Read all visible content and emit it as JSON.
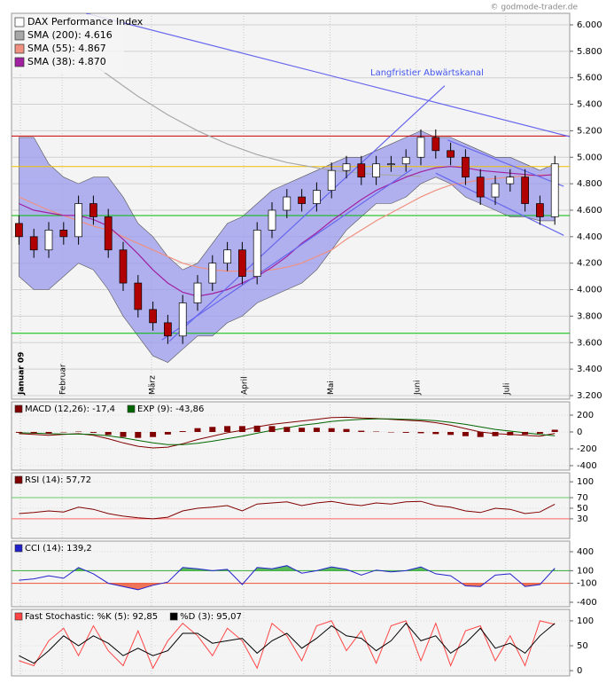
{
  "watermark": "© godmode-trader.de",
  "chart_data": [
    {
      "type": "candlestick",
      "annotation": "Langfristier Abwärtskanal",
      "xlim": [
        -0.5,
        37
      ],
      "ylim": [
        3173,
        6087
      ],
      "xticks": [
        {
          "value": 0.1,
          "label": "Januar 09"
        },
        {
          "value": 2.9,
          "label": "Februar"
        },
        {
          "value": 8.9,
          "label": "März"
        },
        {
          "value": 15.1,
          "label": "April"
        },
        {
          "value": 20.9,
          "label": "Mai"
        },
        {
          "value": 26.7,
          "label": "Juni"
        },
        {
          "value": 32.7,
          "label": "Juli"
        }
      ],
      "yticks": [
        {
          "value": 3200,
          "label": "3.200"
        },
        {
          "value": 3400,
          "label": "3.400"
        },
        {
          "value": 3600,
          "label": "3.600"
        },
        {
          "value": 3800,
          "label": "3.800"
        },
        {
          "value": 4000,
          "label": "4.000"
        },
        {
          "value": 4200,
          "label": "4.200"
        },
        {
          "value": 4400,
          "label": "4.400"
        },
        {
          "value": 4600,
          "label": "4.600"
        },
        {
          "value": 4800,
          "label": "4.800"
        },
        {
          "value": 5000,
          "label": "5.000"
        },
        {
          "value": 5200,
          "label": "5.200"
        },
        {
          "value": 5400,
          "label": "5.400"
        },
        {
          "value": 5600,
          "label": "5.600"
        },
        {
          "value": 5800,
          "label": "5.800"
        },
        {
          "value": 6000,
          "label": "6.000"
        }
      ],
      "grid": true,
      "up_color": "#ffffff",
      "down_color": "#b00000",
      "series": [
        {
          "name": "DAX Performance Index",
          "color": "#ffffff",
          "open": [
            4500,
            4400,
            4300,
            4450,
            4400,
            4650,
            4550,
            4300,
            4050,
            3850,
            3750,
            3650,
            3900,
            4050,
            4200,
            4300,
            4100,
            4450,
            4600,
            4700,
            4650,
            4750,
            4900,
            4950,
            4850,
            4950,
            4950,
            5000,
            5150,
            5050,
            5000,
            4850,
            4700,
            4800,
            4850,
            4650,
            4550
          ],
          "high": [
            4560,
            4460,
            4510,
            4510,
            4710,
            4710,
            4610,
            4360,
            4110,
            3910,
            3810,
            3960,
            4110,
            4260,
            4360,
            4360,
            4510,
            4660,
            4760,
            4760,
            4810,
            4960,
            5010,
            5010,
            5010,
            5010,
            5060,
            5210,
            5210,
            5110,
            5060,
            4910,
            4860,
            4910,
            4910,
            4710,
            5010
          ],
          "low": [
            4340,
            4240,
            4240,
            4340,
            4340,
            4490,
            4240,
            3990,
            3790,
            3690,
            3590,
            3590,
            3840,
            3990,
            4140,
            4040,
            4040,
            4390,
            4540,
            4590,
            4590,
            4690,
            4840,
            4790,
            4790,
            4890,
            4890,
            4940,
            4990,
            4940,
            4790,
            4640,
            4640,
            4740,
            4590,
            4490,
            4490
          ],
          "close": [
            4400,
            4300,
            4450,
            4400,
            4650,
            4550,
            4300,
            4050,
            3850,
            3750,
            3650,
            3900,
            4050,
            4200,
            4300,
            4100,
            4450,
            4600,
            4700,
            4650,
            4750,
            4900,
            4950,
            4850,
            4950,
            4950,
            5000,
            5150,
            5050,
            5000,
            4850,
            4700,
            4800,
            4850,
            4650,
            4550,
            4950
          ]
        },
        {
          "name": "SMA (200): 4.616",
          "color": "#a8a8a8",
          "values": [
            null,
            null,
            null,
            null,
            null,
            5700,
            5620,
            5540,
            5460,
            5390,
            5320,
            5260,
            5200,
            5150,
            5100,
            5060,
            5020,
            4990,
            4960,
            4940,
            4920,
            4900,
            4890,
            4880,
            4870,
            4865,
            4860,
            4855,
            null,
            null,
            null,
            null,
            null,
            null,
            null,
            null,
            null
          ]
        },
        {
          "name": "SMA (55): 4.867",
          "color": "#f09080",
          "values": [
            4700,
            4650,
            4600,
            4560,
            4520,
            4480,
            4450,
            4400,
            4350,
            4300,
            4250,
            4200,
            4170,
            4150,
            4140,
            4140,
            4140,
            4150,
            4170,
            4200,
            4250,
            4300,
            4380,
            4450,
            4520,
            4580,
            4640,
            4700,
            4750,
            4790,
            4810,
            4830,
            4840,
            4850,
            4860,
            4865,
            4867
          ]
        },
        {
          "name": "SMA (38): 4.870",
          "color": "#a020a0",
          "values": [
            4650,
            4600,
            4580,
            4560,
            4560,
            4530,
            4480,
            4380,
            4270,
            4150,
            4050,
            3980,
            3950,
            3970,
            4000,
            4050,
            4100,
            4170,
            4250,
            4350,
            4430,
            4520,
            4600,
            4680,
            4750,
            4800,
            4850,
            4890,
            4920,
            4930,
            4920,
            4900,
            4890,
            4880,
            4870,
            4860,
            4870
          ]
        }
      ],
      "bands": {
        "color": "#9999ee",
        "upper": [
          5150,
          5150,
          4950,
          4850,
          4800,
          4850,
          4850,
          4700,
          4500,
          4400,
          4250,
          4150,
          4200,
          4350,
          4500,
          4550,
          4650,
          4750,
          4800,
          4850,
          4900,
          4950,
          5000,
          5000,
          5050,
          5100,
          5150,
          5200,
          5150,
          5150,
          5100,
          5050,
          5000,
          5000,
          4950,
          4900,
          4950
        ],
        "lower": [
          4100,
          4000,
          4000,
          4100,
          4200,
          4150,
          4000,
          3800,
          3650,
          3500,
          3450,
          3550,
          3650,
          3650,
          3750,
          3800,
          3900,
          3950,
          4000,
          4050,
          4150,
          4300,
          4450,
          4550,
          4650,
          4650,
          4700,
          4800,
          4850,
          4800,
          4700,
          4650,
          4600,
          4550,
          4550,
          4520,
          4520
        ]
      },
      "hlines": [
        {
          "value": 5160,
          "color": "#cc0000"
        },
        {
          "value": 4930,
          "color": "#f0c000"
        },
        {
          "value": 4560,
          "color": "#00bb00"
        },
        {
          "value": 3670,
          "color": "#00bb00"
        }
      ],
      "trendlines": [
        {
          "x": [
            4.5,
            37.2
          ],
          "y": [
            6087,
            5150
          ],
          "color": "#6666ee"
        },
        {
          "x": [
            10.1,
            28.6
          ],
          "y": [
            3610,
            5540
          ],
          "color": "#6666ee"
        },
        {
          "x": [
            9.6,
            26.4
          ],
          "y": [
            3620,
            4910
          ],
          "color": "#6666ee"
        },
        {
          "x": [
            28.8,
            36.6
          ],
          "y": [
            5130,
            4780
          ],
          "color": "#6666ee"
        },
        {
          "x": [
            28,
            36.6
          ],
          "y": [
            4880,
            4410
          ],
          "color": "#6666ee"
        }
      ]
    },
    {
      "type": "line",
      "xlim": [
        -0.5,
        37
      ],
      "ylim": [
        -453,
        358
      ],
      "yticks": [
        -400,
        -200,
        0,
        200
      ],
      "series": [
        {
          "name": "MACD (12,26): -17,4",
          "color": "#800000",
          "values": [
            -20,
            -30,
            -40,
            -30,
            -20,
            -40,
            -80,
            -130,
            -170,
            -190,
            -180,
            -140,
            -90,
            -50,
            -10,
            20,
            60,
            90,
            110,
            130,
            150,
            170,
            175,
            165,
            160,
            150,
            140,
            130,
            110,
            80,
            40,
            0,
            -20,
            -30,
            -40,
            -50,
            -17.4
          ]
        },
        {
          "name": "EXP (9): -43,86",
          "color": "#006600",
          "values": [
            -10,
            -15,
            -20,
            -25,
            -25,
            -30,
            -45,
            -70,
            -100,
            -130,
            -150,
            -150,
            -135,
            -110,
            -80,
            -50,
            -15,
            20,
            50,
            80,
            100,
            125,
            140,
            150,
            155,
            155,
            150,
            145,
            135,
            115,
            90,
            60,
            30,
            10,
            -10,
            -30,
            -43.86
          ]
        },
        {
          "color": "#800000",
          "style": "bar",
          "values": [
            -10,
            -15,
            -20,
            -5,
            5,
            -10,
            -35,
            -60,
            -70,
            -60,
            -30,
            10,
            45,
            60,
            70,
            70,
            75,
            70,
            60,
            50,
            50,
            45,
            35,
            15,
            5,
            -5,
            -10,
            -15,
            -25,
            -35,
            -50,
            -60,
            -50,
            -40,
            -30,
            -20,
            26.46
          ]
        }
      ]
    },
    {
      "type": "line",
      "xlim": [
        -0.5,
        37
      ],
      "ylim": [
        -7,
        117
      ],
      "yticks": [
        30,
        50,
        70,
        100
      ],
      "hlines": [
        {
          "value": 70,
          "color": "#66cc66"
        },
        {
          "value": 30,
          "color": "#ff6666"
        }
      ],
      "series": [
        {
          "name": "RSI (14): 57,72",
          "color": "#800000",
          "values": [
            40,
            42,
            45,
            43,
            52,
            48,
            40,
            35,
            32,
            30,
            33,
            45,
            50,
            52,
            55,
            45,
            58,
            60,
            62,
            55,
            60,
            63,
            58,
            55,
            60,
            58,
            62,
            63,
            55,
            52,
            45,
            42,
            50,
            48,
            40,
            43,
            57.72
          ]
        }
      ]
    },
    {
      "type": "line",
      "xlim": [
        -0.5,
        37
      ],
      "ylim": [
        -470,
        568
      ],
      "yticks": [
        -400,
        -100,
        100,
        400
      ],
      "hlines": [
        {
          "value": 100,
          "color": "#33aa33",
          "fill": true
        },
        {
          "value": -100,
          "color": "#ee5533",
          "fill": true
        }
      ],
      "series": [
        {
          "name": "CCI (14): 139,2",
          "color": "#2222cc",
          "values": [
            -50,
            -30,
            20,
            -20,
            150,
            50,
            -100,
            -150,
            -200,
            -130,
            -80,
            150,
            130,
            100,
            120,
            -120,
            150,
            130,
            180,
            60,
            100,
            160,
            120,
            30,
            110,
            80,
            100,
            160,
            50,
            20,
            -140,
            -150,
            30,
            50,
            -150,
            -120,
            139.2
          ]
        }
      ]
    },
    {
      "type": "line",
      "xlim": [
        -0.5,
        37
      ],
      "ylim": [
        -10.5,
        123
      ],
      "yticks": [
        0,
        50,
        100
      ],
      "series": [
        {
          "name": "Fast Stochastic: %K (5): 92,85",
          "color": "#ff4444",
          "values": [
            20,
            10,
            60,
            85,
            30,
            90,
            40,
            10,
            80,
            5,
            60,
            95,
            70,
            30,
            85,
            60,
            5,
            95,
            70,
            20,
            90,
            100,
            40,
            80,
            15,
            90,
            100,
            20,
            95,
            10,
            80,
            90,
            20,
            70,
            10,
            100,
            92.85
          ]
        },
        {
          "name": "%D (3): 95,07",
          "color": "#000000",
          "values": [
            30,
            15,
            40,
            70,
            50,
            70,
            55,
            30,
            45,
            30,
            40,
            75,
            75,
            55,
            60,
            65,
            35,
            60,
            75,
            45,
            65,
            90,
            70,
            65,
            40,
            60,
            95,
            60,
            70,
            35,
            55,
            85,
            45,
            55,
            35,
            70,
            95.07
          ]
        }
      ]
    }
  ]
}
